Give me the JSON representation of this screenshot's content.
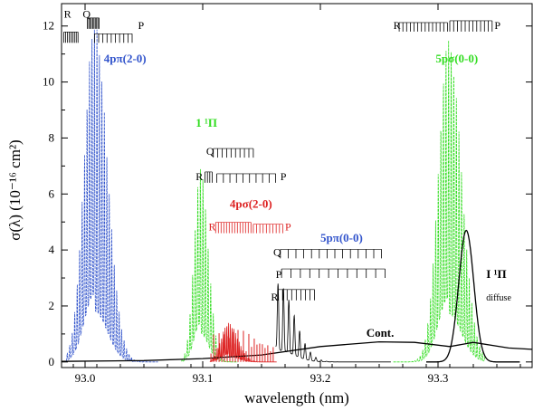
{
  "chart_data": {
    "type": "line",
    "title": "",
    "xlabel": "wavelength (nm)",
    "ylabel": "σ(λ)  (10⁻¹⁶ cm²)",
    "xlim": [
      92.98,
      93.38
    ],
    "ylim": [
      -0.2,
      12.8
    ],
    "xticks": [
      93.0,
      93.1,
      93.2,
      93.3
    ],
    "xtick_labels": [
      "93.0",
      "93.1",
      "93.2",
      "93.3"
    ],
    "yticks": [
      0,
      2,
      4,
      6,
      8,
      10,
      12
    ],
    "ytick_labels": [
      "0",
      "2",
      "4",
      "6",
      "8",
      "10",
      "12"
    ],
    "series": [
      {
        "name": "4pπ(2-0)",
        "color": "#3355cc",
        "style": "dashed",
        "x_start": 92.984,
        "x_end": 93.062,
        "peak_x": 93.008,
        "peak_value": 12.1,
        "line_spacing": 0.0021
      },
      {
        "name": "1 ¹Π",
        "color": "#33dd22",
        "style": "dashed",
        "x_start": 93.082,
        "x_end": 93.13,
        "peak_x": 93.098,
        "peak_value": 6.9,
        "line_spacing": 0.0022
      },
      {
        "name": "4pσ(2-0)",
        "color": "#dd2222",
        "style": "solid",
        "x_start": 93.106,
        "x_end": 93.163,
        "peak_x": 93.122,
        "peak_value": 1.4,
        "line_spacing": 0.0015
      },
      {
        "name": "5pπ(0-0)",
        "color": "#000000",
        "style": "solid",
        "x_start": 93.162,
        "x_end": 93.26,
        "peak_x": 93.164,
        "peak_value": 2.8,
        "line_spacing": 0.0046
      },
      {
        "name": "5pσ(0-0)",
        "color": "#33dd22",
        "style": "dashed",
        "x_start": 93.262,
        "x_end": 93.34,
        "peak_x": 93.309,
        "peak_value": 11.5,
        "line_spacing": 0.0022
      },
      {
        "name": "I ¹Π diffuse",
        "color": "#000000",
        "style": "solid",
        "x_start": 93.29,
        "x_end": 93.37,
        "peak_x": 93.324,
        "peak_value": 4.7,
        "line_spacing": 0
      },
      {
        "name": "Cont.",
        "color": "#000000",
        "style": "solid",
        "points": [
          [
            92.98,
            0.02
          ],
          [
            93.05,
            0.05
          ],
          [
            93.1,
            0.12
          ],
          [
            93.15,
            0.25
          ],
          [
            93.2,
            0.55
          ],
          [
            93.25,
            0.72
          ],
          [
            93.28,
            0.7
          ],
          [
            93.31,
            0.55
          ],
          [
            93.33,
            0.7
          ],
          [
            93.36,
            0.5
          ],
          [
            93.38,
            0.45
          ]
        ]
      }
    ],
    "annotations": [
      {
        "text": "R",
        "x": 92.982,
        "y": 12.3,
        "color": "#000000"
      },
      {
        "text": "Q",
        "x": 92.998,
        "y": 12.3,
        "color": "#000000"
      },
      {
        "text": "P",
        "x": 93.045,
        "y": 11.9,
        "color": "#000000"
      },
      {
        "text": "4pπ(2-0)",
        "x": 93.016,
        "y": 10.7,
        "color": "#3355cc",
        "bold": true
      },
      {
        "text": "R",
        "x": 93.262,
        "y": 11.9,
        "color": "#000000"
      },
      {
        "text": "P",
        "x": 93.348,
        "y": 11.9,
        "color": "#000000"
      },
      {
        "text": "5pσ(0-0)",
        "x": 93.298,
        "y": 10.7,
        "color": "#33dd22",
        "bold": true
      },
      {
        "text": "1 ¹Π",
        "x": 93.094,
        "y": 8.4,
        "color": "#33dd22",
        "bold": true
      },
      {
        "text": "Q",
        "x": 93.103,
        "y": 7.4,
        "color": "#000000"
      },
      {
        "text": "R",
        "x": 93.094,
        "y": 6.5,
        "color": "#000000"
      },
      {
        "text": "P",
        "x": 93.166,
        "y": 6.5,
        "color": "#000000"
      },
      {
        "text": "4pσ(2-0)",
        "x": 93.123,
        "y": 5.5,
        "color": "#dd2222",
        "bold": true
      },
      {
        "text": "R",
        "x": 93.105,
        "y": 4.7,
        "color": "#dd2222"
      },
      {
        "text": "P",
        "x": 93.17,
        "y": 4.7,
        "color": "#dd2222"
      },
      {
        "text": "5pπ(0-0)",
        "x": 93.2,
        "y": 4.3,
        "color": "#3355cc",
        "bold": true
      },
      {
        "text": "Q",
        "x": 93.16,
        "y": 3.8,
        "color": "#000000"
      },
      {
        "text": "P",
        "x": 93.162,
        "y": 3.0,
        "color": "#000000"
      },
      {
        "text": "R",
        "x": 93.158,
        "y": 2.2,
        "color": "#000000"
      },
      {
        "text": "Cont.",
        "x": 93.239,
        "y": 0.9,
        "color": "#000000",
        "bold": true
      },
      {
        "text": "I ¹Π",
        "x": 93.341,
        "y": 3.0,
        "color": "#000000",
        "bold": true
      },
      {
        "text": "diffuse",
        "x": 93.341,
        "y": 2.2,
        "color": "#000000",
        "small": true
      }
    ]
  }
}
